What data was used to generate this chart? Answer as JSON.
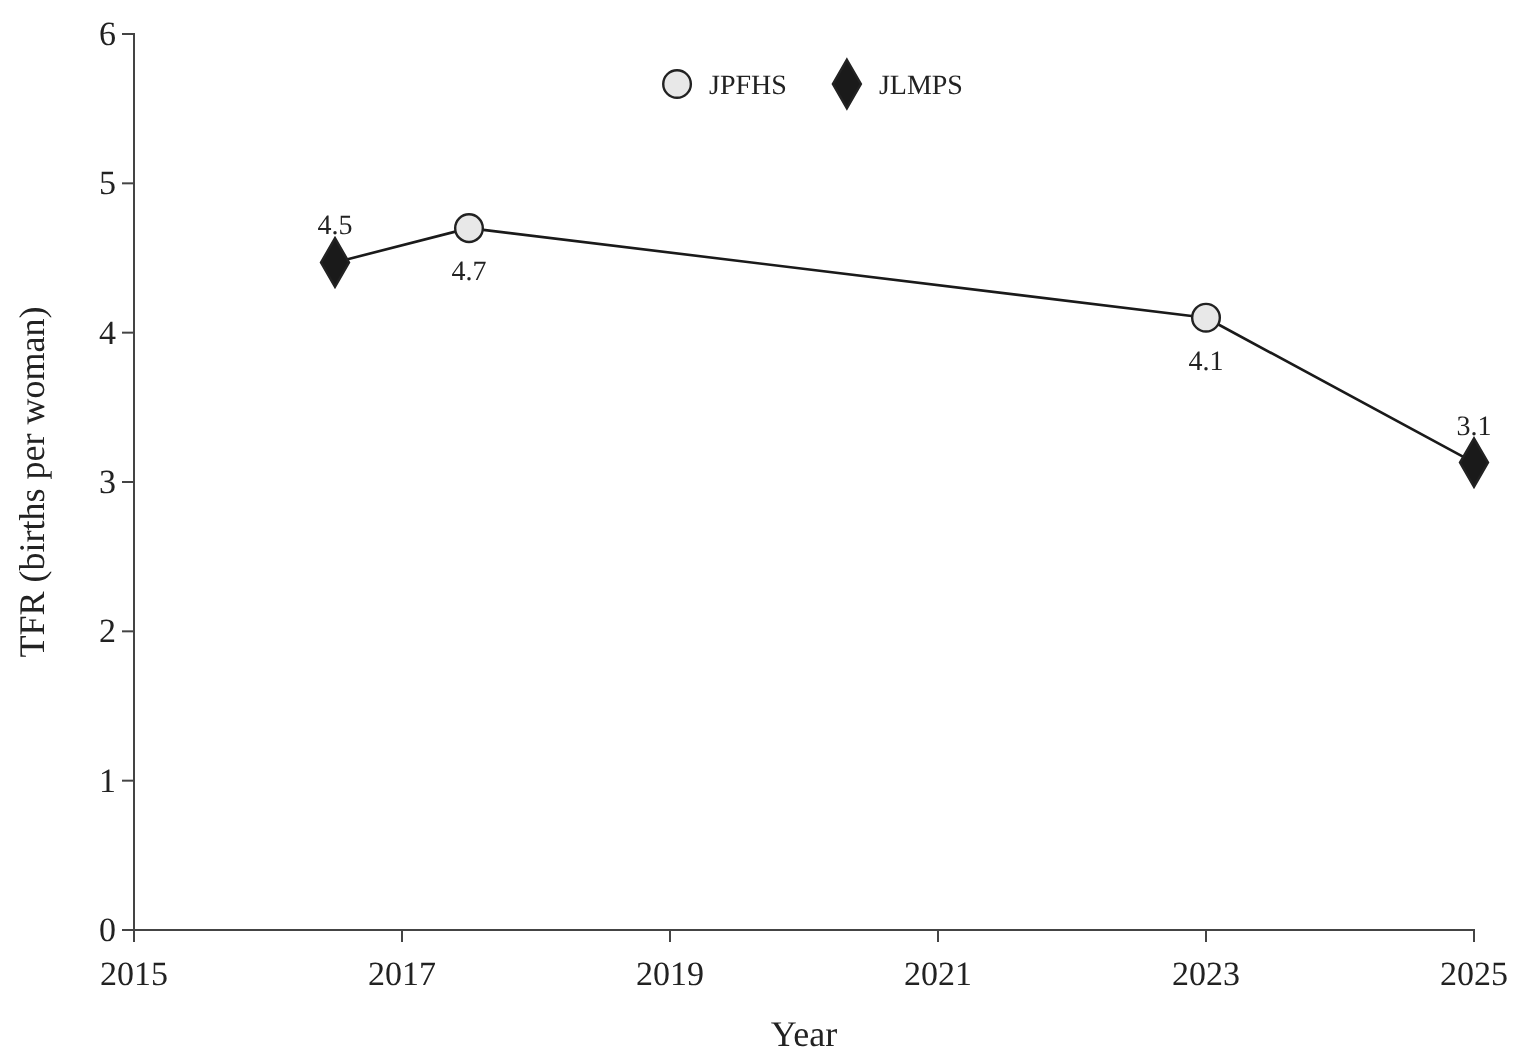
{
  "chart_data": {
    "type": "scatter",
    "xlabel": "Year",
    "ylabel": "TFR (births per woman)",
    "xlim": [
      2015,
      2025
    ],
    "xticks": [
      2015,
      2017,
      2019,
      2021,
      2023,
      2025
    ],
    "ylim": [
      0,
      6
    ],
    "yticks": [
      0,
      1,
      2,
      3,
      4,
      5,
      6
    ],
    "grid": false,
    "legend": "top",
    "series": [
      {
        "type": "line",
        "color": "#1a1a1a",
        "marker": "none",
        "x": [
          2016.5,
          2017.5,
          2023,
          2025
        ],
        "values": [
          4.47,
          4.7,
          4.1,
          3.13
        ]
      },
      {
        "name": "JPFHS",
        "color": "#e8e8e8",
        "marker": "circle",
        "x": [
          2017.5,
          2023
        ],
        "values": [
          4.7,
          4.1
        ],
        "value_labels": [
          "4.7",
          "4.1"
        ]
      },
      {
        "name": "JLMPS",
        "color": "#1a1a1a",
        "marker": "diamond",
        "x": [
          2016.5,
          2025
        ],
        "values": [
          4.47,
          3.13
        ],
        "value_labels": [
          "4.5",
          "3.1"
        ]
      }
    ]
  }
}
